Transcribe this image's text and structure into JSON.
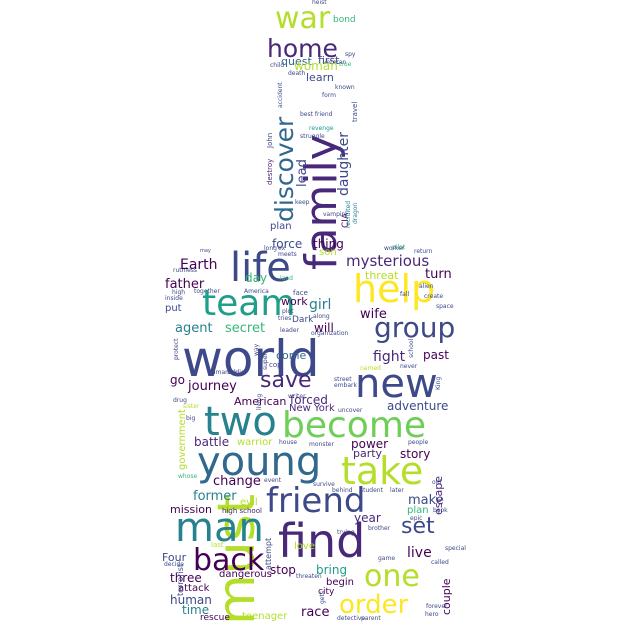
{
  "palette": {
    "yellow": "#fde725",
    "lime": "#b5de2b",
    "green": "#6ece58",
    "teal_green": "#35b779",
    "teal": "#1f9e89",
    "blue_teal": "#26828e",
    "blue": "#31688e",
    "indigo": "#3e4989",
    "purple": "#482878",
    "dark": "#440154"
  },
  "words": [
    {
      "t": "world"
    },
    {
      "t": "life"
    },
    {
      "t": "find"
    },
    {
      "t": "man"
    },
    {
      "t": "young"
    },
    {
      "t": "become"
    },
    {
      "t": "must"
    },
    {
      "t": "two"
    },
    {
      "t": "take"
    },
    {
      "t": "new"
    },
    {
      "t": "help"
    },
    {
      "t": "team"
    },
    {
      "t": "family"
    },
    {
      "t": "friend"
    },
    {
      "t": "back"
    },
    {
      "t": "one"
    },
    {
      "t": "order"
    },
    {
      "t": "group"
    },
    {
      "t": "home"
    },
    {
      "t": "war"
    },
    {
      "t": "discover"
    },
    {
      "t": "save"
    },
    {
      "t": "set"
    },
    {
      "t": "mysterious"
    },
    {
      "t": "daughter"
    },
    {
      "t": "woman"
    },
    {
      "t": "learn"
    },
    {
      "t": "first"
    },
    {
      "t": "quest"
    },
    {
      "t": "bond"
    },
    {
      "t": "lead"
    },
    {
      "t": "force"
    },
    {
      "t": "thing"
    },
    {
      "t": "Earth"
    },
    {
      "t": "father"
    },
    {
      "t": "day"
    },
    {
      "t": "turn"
    },
    {
      "t": "threat"
    },
    {
      "t": "girl"
    },
    {
      "t": "wife"
    },
    {
      "t": "agent"
    },
    {
      "t": "secret"
    },
    {
      "t": "will"
    },
    {
      "t": "fight"
    },
    {
      "t": "past"
    },
    {
      "t": "journey"
    },
    {
      "t": "American"
    },
    {
      "t": "forced"
    },
    {
      "t": "come"
    },
    {
      "t": "go"
    },
    {
      "t": "adventure"
    },
    {
      "t": "New York"
    },
    {
      "t": "battle"
    },
    {
      "t": "power"
    },
    {
      "t": "party"
    },
    {
      "t": "story"
    },
    {
      "t": "change"
    },
    {
      "t": "escape"
    },
    {
      "t": "former"
    },
    {
      "t": "make"
    },
    {
      "t": "mission"
    },
    {
      "t": "year"
    },
    {
      "t": "couple"
    },
    {
      "t": "live"
    },
    {
      "t": "Four"
    },
    {
      "t": "stop"
    },
    {
      "t": "bring"
    },
    {
      "t": "three"
    },
    {
      "t": "dangerous"
    },
    {
      "t": "begin"
    },
    {
      "t": "human"
    },
    {
      "t": "time"
    },
    {
      "t": "race"
    },
    {
      "t": "rescue"
    },
    {
      "t": "teenager"
    },
    {
      "t": "attack"
    },
    {
      "t": "government"
    },
    {
      "t": "warrior"
    },
    {
      "t": "school"
    },
    {
      "t": "love"
    },
    {
      "t": "evil"
    },
    {
      "t": "son"
    },
    {
      "t": "gets"
    },
    {
      "t": "city"
    },
    {
      "t": "plan"
    },
    {
      "t": "attempt"
    },
    {
      "t": "high school"
    },
    {
      "t": "spy"
    },
    {
      "t": "veteran"
    },
    {
      "t": "heist"
    },
    {
      "t": "child"
    },
    {
      "t": "death"
    },
    {
      "t": "true"
    },
    {
      "t": "history"
    },
    {
      "t": "form"
    },
    {
      "t": "known"
    },
    {
      "t": "accident"
    },
    {
      "t": "best friend"
    },
    {
      "t": "travel"
    },
    {
      "t": "revenge"
    },
    {
      "t": "John"
    },
    {
      "t": "struggle"
    },
    {
      "t": "destroy"
    },
    {
      "t": "CIA"
    },
    {
      "t": "keep"
    },
    {
      "t": "vampire"
    },
    {
      "t": "recruited"
    },
    {
      "t": "dragon"
    },
    {
      "t": "meets"
    },
    {
      "t": "ex"
    },
    {
      "t": "long"
    },
    {
      "t": "may"
    },
    {
      "t": "worker"
    },
    {
      "t": "return"
    },
    {
      "t": "pilot"
    },
    {
      "t": "ruthless"
    },
    {
      "t": "high"
    },
    {
      "t": "together"
    },
    {
      "t": "America"
    },
    {
      "t": "fall"
    },
    {
      "t": "land"
    },
    {
      "t": "create"
    },
    {
      "t": "alien"
    },
    {
      "t": "space"
    },
    {
      "t": "inside"
    },
    {
      "t": "face"
    },
    {
      "t": "along"
    },
    {
      "t": "plot"
    },
    {
      "t": "tries"
    },
    {
      "t": "Dark"
    },
    {
      "t": "work"
    },
    {
      "t": "put"
    },
    {
      "t": "way"
    },
    {
      "t": "cop"
    },
    {
      "t": "super"
    },
    {
      "t": "living"
    },
    {
      "t": "humanity"
    },
    {
      "t": "soldier"
    },
    {
      "t": "protect"
    },
    {
      "t": "never"
    },
    {
      "t": "named"
    },
    {
      "t": "street"
    },
    {
      "t": "embark"
    },
    {
      "t": "writer"
    },
    {
      "t": "big"
    },
    {
      "t": "drug"
    },
    {
      "t": "sister"
    },
    {
      "t": "house"
    },
    {
      "t": "uncover"
    },
    {
      "t": "monster"
    },
    {
      "t": "people"
    },
    {
      "t": "whose"
    },
    {
      "t": "event"
    },
    {
      "t": "survive"
    },
    {
      "t": "behind"
    },
    {
      "t": "later"
    },
    {
      "t": "student"
    },
    {
      "t": "epic"
    },
    {
      "t": "old"
    },
    {
      "t": "book"
    },
    {
      "t": "terrorist"
    },
    {
      "t": "brother"
    },
    {
      "t": "trying"
    },
    {
      "t": "decide"
    },
    {
      "t": "last"
    },
    {
      "t": "threaten"
    },
    {
      "t": "game"
    },
    {
      "t": "special"
    },
    {
      "t": "called"
    },
    {
      "t": "King"
    },
    {
      "t": "leader"
    },
    {
      "t": "organization"
    },
    {
      "t": "forever"
    },
    {
      "t": "hero"
    },
    {
      "t": "detective"
    },
    {
      "t": "parent"
    }
  ]
}
